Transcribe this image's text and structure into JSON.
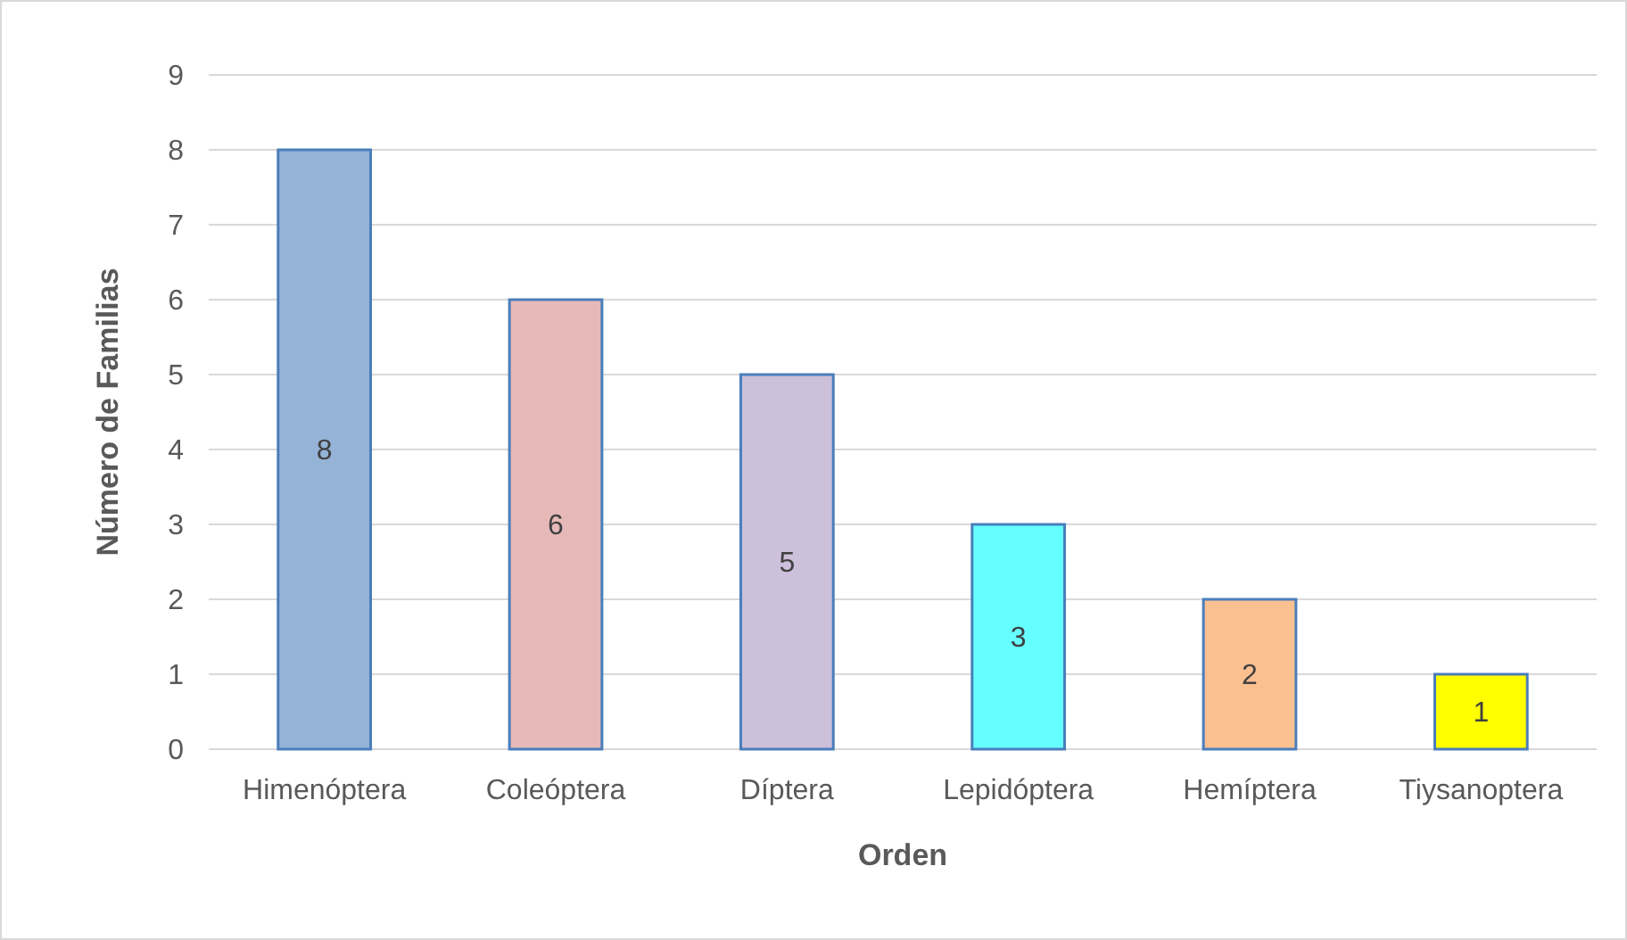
{
  "chart_data": {
    "type": "bar",
    "xlabel": "Orden",
    "ylabel": "Número de Familias",
    "categories": [
      "Himenóptera",
      "Coleóptera",
      "Díptera",
      "Lepidóptera",
      "Hemíptera",
      "Tiysanoptera"
    ],
    "values": [
      8,
      6,
      5,
      3,
      2,
      1
    ],
    "colors": [
      "#95b3d7",
      "#e6b9b8",
      "#ccc0da",
      "#66ffff",
      "#fac090",
      "#ffff00"
    ],
    "ylim": [
      0,
      9
    ],
    "yticks": [
      0,
      1,
      2,
      3,
      4,
      5,
      6,
      7,
      8,
      9
    ],
    "grid": "y",
    "data_labels": true
  }
}
